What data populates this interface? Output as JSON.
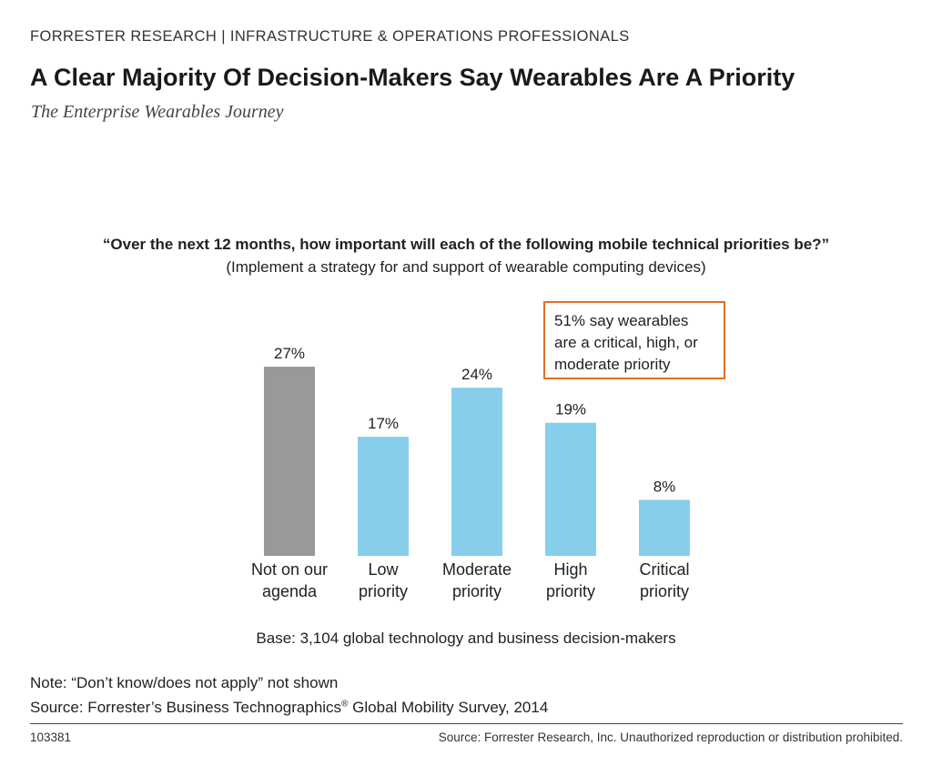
{
  "header": {
    "org_line": "FORRESTER RESEARCH  |  INFRASTRUCTURE & OPERATIONS PROFESSIONALS",
    "title": "A Clear Majority Of Decision-Makers Say Wearables Are A Priority",
    "subtitle": "The Enterprise Wearables Journey"
  },
  "question": {
    "text": "“Over the next 12 months, how important will each of the following mobile technical priorities be?”",
    "subtext": "(Implement a strategy for and support of wearable computing devices)"
  },
  "callout": {
    "line1": "51% say wearables",
    "line2": "are a critical, high, or",
    "line3": "moderate priority",
    "border_color": "#e0702a"
  },
  "chart_data": {
    "type": "bar",
    "categories": [
      [
        "Not on our",
        "agenda"
      ],
      [
        "Low",
        "priority"
      ],
      [
        "Moderate",
        "priority"
      ],
      [
        "High",
        "priority"
      ],
      [
        "Critical",
        "priority"
      ]
    ],
    "values": [
      27,
      17,
      24,
      19,
      8
    ],
    "value_labels": [
      "27%",
      "17%",
      "24%",
      "19%",
      "8%"
    ],
    "colors": [
      "#999999",
      "#87ceeb",
      "#87ceeb",
      "#87ceeb",
      "#87ceeb"
    ],
    "ylim": [
      0,
      30
    ],
    "grid": false,
    "unit": "%"
  },
  "footer": {
    "base": "Base: 3,104 global technology and business decision-makers",
    "note": "Note: “Don’t know/does not apply” not shown",
    "source_prefix": "Source: Forrester’s Business Technographics",
    "source_reg": "®",
    "source_suffix": " Global Mobility Survey, 2014",
    "id": "103381",
    "copyright": "Source: Forrester Research, Inc. Unauthorized reproduction or distribution prohibited."
  }
}
